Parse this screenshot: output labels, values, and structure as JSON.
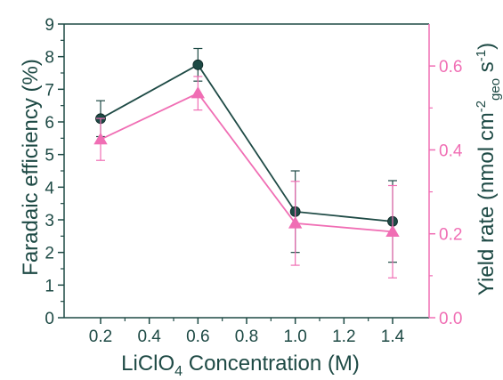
{
  "chart_data": {
    "type": "line",
    "xlabel": {
      "main": "LiClO",
      "sub": "4",
      "rest": " Concentration (M)"
    },
    "ylabel_left": "Faradaic efficiency (%)",
    "ylabel_right": {
      "main": "Yield rate (nmol cm",
      "sup1": "-2",
      "sub": "geo",
      "mid": " s",
      "sup2": "-1",
      "end": ")"
    },
    "x_ticks": [
      "0.2",
      "0.4",
      "0.6",
      "0.8",
      "1.0",
      "1.2",
      "1.4"
    ],
    "x_tick_values": [
      0.2,
      0.4,
      0.6,
      0.8,
      1.0,
      1.2,
      1.4
    ],
    "xlim": [
      0.05,
      1.55
    ],
    "y_left_ticks": [
      "0",
      "1",
      "2",
      "3",
      "4",
      "5",
      "6",
      "7",
      "8",
      "9"
    ],
    "y_left_tick_values": [
      0,
      1,
      2,
      3,
      4,
      5,
      6,
      7,
      8,
      9
    ],
    "ylim_left": [
      0,
      9
    ],
    "y_right_ticks": [
      "0.0",
      "0.2",
      "0.4",
      "0.6"
    ],
    "y_right_tick_values": [
      0.0,
      0.2,
      0.4,
      0.6
    ],
    "ylim_right": [
      0,
      0.7
    ],
    "series": [
      {
        "axis": "left",
        "marker": "circle",
        "color": "#1e4a45",
        "x": [
          0.2,
          0.6,
          1.0,
          1.4
        ],
        "y": [
          6.1,
          7.75,
          3.25,
          2.95
        ],
        "err": [
          0.55,
          0.5,
          1.25,
          1.25
        ]
      },
      {
        "axis": "right",
        "marker": "triangle",
        "color": "#f06eb4",
        "x": [
          0.2,
          0.6,
          1.0,
          1.4
        ],
        "y": [
          0.425,
          0.535,
          0.225,
          0.205
        ],
        "err": [
          0.05,
          0.04,
          0.1,
          0.11
        ]
      }
    ],
    "colors": {
      "left_axis": "#1e4a45",
      "right_axis": "#f06eb4",
      "frame": "#1e4a45"
    }
  }
}
